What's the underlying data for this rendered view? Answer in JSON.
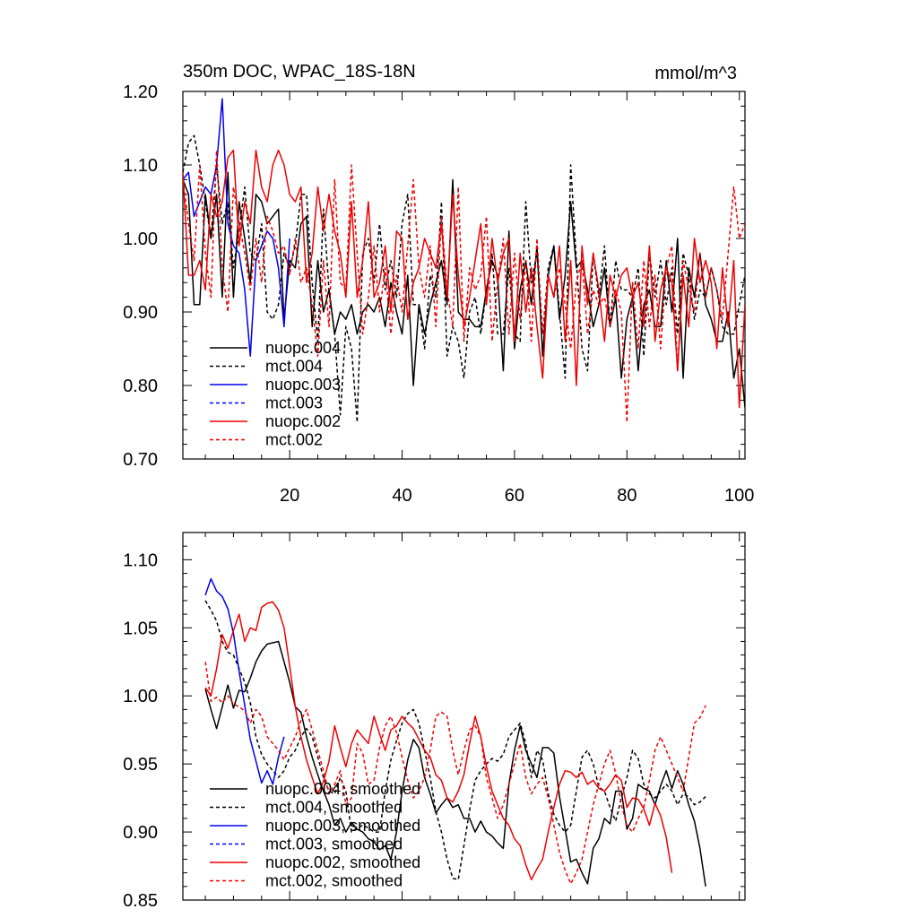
{
  "chart_data": [
    {
      "type": "line",
      "title": "350m DOC, WPAC_18S-18N",
      "units_label": "mmol/m^3",
      "xlim": [
        1,
        101
      ],
      "ylim": [
        0.7,
        1.2
      ],
      "x_ticks": [
        20,
        40,
        60,
        80,
        100
      ],
      "y_ticks": [
        "0.70",
        "0.80",
        "0.90",
        "1.00",
        "1.10",
        "1.20"
      ],
      "legend": "bottom-left",
      "series": [
        {
          "name": "nuopc.004",
          "color": "#000000",
          "dash": "solid",
          "x_start": 1,
          "values": [
            1.08,
            1.06,
            0.91,
            0.91,
            1.06,
            1.0,
            1.06,
            0.92,
            1.09,
            0.92,
            1.05,
            1.0,
            0.94,
            1.06,
            1.05,
            1.02,
            1.03,
            1.04,
            0.89,
            0.97,
            0.96,
            1.02,
            1.03,
            0.88,
            0.97,
            0.9,
            0.93,
            0.87,
            0.9,
            0.89,
            0.91,
            0.87,
            0.9,
            0.91,
            0.9,
            0.92,
            0.88,
            0.94,
            0.9,
            0.87,
            0.95,
            0.8,
            0.91,
            0.87,
            0.91,
            0.94,
            0.97,
            0.91,
            1.08,
            0.9,
            0.89,
            0.89,
            0.88,
            0.88,
            0.93,
            0.97,
            0.95,
            0.82,
            1.01,
            0.85,
            0.93,
            0.97,
            0.91,
            0.99,
            0.84,
            0.95,
            0.99,
            0.89,
            0.95,
            1.05,
            0.96,
            0.97,
            0.93,
            0.88,
            0.91,
            0.96,
            0.88,
            0.92,
            0.81,
            0.89,
            0.92,
            0.82,
            0.91,
            0.93,
            0.88,
            0.88,
            0.97,
            0.9,
            1.0,
            0.81,
            0.96,
            0.92,
            0.98,
            0.91,
            0.89,
            0.86,
            0.86,
            0.9,
            0.81,
            0.85,
            0.77
          ]
        },
        {
          "name": "mct.004",
          "color": "#000000",
          "dash": "dashed",
          "x_start": 1,
          "values": [
            1.09,
            1.13,
            1.14,
            1.1,
            1.05,
            1.0,
            1.1,
            1.02,
            1.05,
            0.96,
            1.01,
            1.07,
            0.98,
            0.97,
            1.02,
            0.9,
            0.89,
            0.91,
            0.98,
            0.96,
            0.99,
            1.06,
            1.06,
            0.94,
            0.86,
            1.04,
            0.93,
            0.87,
            0.76,
            0.88,
            0.85,
            0.75,
            0.98,
            1.0,
            0.94,
            1.02,
            0.93,
            0.97,
            0.92,
            1.02,
            1.06,
            0.91,
            0.91,
            0.85,
            0.95,
            0.92,
            1.05,
            0.84,
            0.88,
            0.86,
            0.81,
            0.9,
            0.92,
            0.87,
            0.93,
            0.98,
            0.87,
            0.87,
            0.96,
            0.87,
            0.86,
            1.05,
            0.94,
            0.98,
            0.87,
            0.96,
            0.99,
            0.9,
            0.81,
            1.1,
            0.97,
            0.85,
            0.82,
            0.98,
            0.92,
            0.99,
            0.88,
            0.97,
            0.93,
            0.93,
            0.92,
            0.96,
            0.84,
            0.98,
            0.92,
            0.97,
            0.91,
            0.96,
            0.87,
            0.98,
            0.95,
            0.89,
            0.93,
            0.92,
            0.96,
            0.93,
            0.88,
            0.87,
            0.87,
            0.91,
            0.95
          ]
        },
        {
          "name": "nuopc.003",
          "color": "#0000ee",
          "dash": "solid",
          "x_start": 1,
          "values": [
            1.08,
            1.09,
            1.03,
            1.05,
            1.07,
            1.06,
            1.1,
            1.19,
            1.02,
            0.99,
            0.98,
            0.93,
            0.84,
            0.97,
            0.99,
            1.01,
            1.0,
            0.96,
            0.88,
            1.0
          ]
        },
        {
          "name": "mct.003",
          "color": "#0000ee",
          "dash": "dashed",
          "x_start": 1,
          "values": []
        },
        {
          "name": "nuopc.002",
          "color": "#ee0000",
          "dash": "solid",
          "x_start": 1,
          "values": [
            1.09,
            0.95,
            0.95,
            0.97,
            0.93,
            1.06,
            1.03,
            1.05,
            1.11,
            1.12,
            0.99,
            1.05,
            1.02,
            1.12,
            1.07,
            1.05,
            1.1,
            1.12,
            1.1,
            1.06,
            1.05,
            1.07,
            0.94,
            0.98,
            1.07,
            1.01,
            1.06,
            1.01,
            0.98,
            0.92,
            1.05,
            0.92,
            0.97,
            1.05,
            0.92,
            0.94,
            0.99,
            0.9,
            1.01,
            1.0,
            0.89,
            0.94,
            0.96,
            1.0,
            0.98,
            0.96,
            1.02,
            0.92,
            1.06,
            0.95,
            0.88,
            0.92,
            0.97,
            1.02,
            0.91,
            1.0,
            0.94,
            0.98,
            1.0,
            0.86,
            0.98,
            0.9,
            0.96,
            0.88,
            0.81,
            0.95,
            0.92,
            0.99,
            0.86,
            0.97,
            0.8,
            0.99,
            0.91,
            0.98,
            0.93,
            0.86,
            0.95,
            0.92,
            0.95,
            0.96,
            0.92,
            0.94,
            0.88,
            0.99,
            0.86,
            0.93,
            0.96,
            0.94,
            0.82,
            0.95,
            0.88,
            1.0,
            0.94,
            0.97,
            0.94,
            0.85,
            0.96,
            0.88,
            0.97,
            0.77,
            0.91
          ]
        },
        {
          "name": "mct.002",
          "color": "#ee0000",
          "dash": "dashed",
          "x_start": 1,
          "values": [
            1.08,
            1.02,
            0.97,
            1.1,
            0.98,
            0.92,
            1.12,
            0.96,
            0.9,
            1.07,
            1.02,
            0.98,
            0.93,
            1.0,
            0.94,
            1.03,
            1.01,
            0.98,
            0.99,
            0.95,
            1.0,
            0.94,
            0.96,
            0.91,
            0.84,
            0.97,
            0.88,
            1.08,
            0.94,
            0.93,
            1.1,
            0.98,
            0.87,
            0.92,
            0.99,
            0.9,
            0.96,
            0.87,
            0.95,
            0.9,
            0.99,
            1.08,
            0.96,
            0.92,
            0.99,
            0.88,
            1.03,
            0.93,
            0.88,
            1.07,
            0.86,
            0.96,
            0.93,
            0.95,
            1.03,
            0.86,
            0.94,
            1.0,
            0.87,
            0.98,
            0.89,
            0.97,
            0.86,
            1.0,
            0.87,
            0.95,
            0.92,
            0.96,
            0.91,
            0.85,
            0.94,
            0.97,
            0.87,
            0.93,
            0.91,
            0.92,
            0.88,
            0.93,
            0.9,
            0.75,
            0.94,
            0.85,
            0.97,
            0.88,
            0.95,
            0.85,
            0.96,
            0.99,
            0.82,
            0.97,
            0.93,
            0.9,
            0.98,
            0.92,
            0.96,
            0.93,
            0.89,
            0.98,
            1.07,
            1.0,
            1.02
          ]
        }
      ]
    },
    {
      "type": "line",
      "title": "",
      "xlim": [
        1,
        101
      ],
      "ylim": [
        0.85,
        1.12
      ],
      "y_ticks": [
        "0.85",
        "0.90",
        "0.95",
        "1.00",
        "1.05",
        "1.10"
      ],
      "legend": "bottom-left",
      "series": [
        {
          "name": "nuopc.004, smoothed",
          "color": "#000000",
          "dash": "solid",
          "x_start": 5,
          "values": [
            1.005,
            0.99,
            0.976,
            0.992,
            1.008,
            0.991,
            1.004,
            1.003,
            1.013,
            1.025,
            1.033,
            1.038,
            1.039,
            1.04,
            1.025,
            1.01,
            0.992,
            0.988,
            0.97,
            0.955,
            0.942,
            0.93,
            0.92,
            0.905,
            0.91,
            0.9,
            0.907,
            0.902,
            0.9,
            0.895,
            0.893,
            0.887,
            0.89,
            0.88,
            0.9,
            0.93,
            0.953,
            0.968,
            0.962,
            0.94,
            0.928,
            0.914,
            0.92,
            0.925,
            0.918,
            0.92,
            0.91,
            0.91,
            0.9,
            0.908,
            0.9,
            0.897,
            0.892,
            0.888,
            0.935,
            0.96,
            0.978,
            0.96,
            0.95,
            0.94,
            0.962,
            0.962,
            0.958,
            0.926,
            0.902,
            0.878,
            0.88,
            0.87,
            0.862,
            0.888,
            0.895,
            0.91,
            0.906,
            0.93,
            0.93,
            0.902,
            0.91,
            0.935,
            0.932,
            0.93,
            0.92,
            0.934,
            0.945,
            0.932,
            0.945,
            0.935,
            0.92,
            0.908,
            0.888,
            0.86
          ]
        },
        {
          "name": "mct.004, smoothed",
          "color": "#000000",
          "dash": "dashed",
          "x_start": 5,
          "values": [
            1.07,
            1.063,
            1.055,
            1.04,
            1.032,
            1.03,
            1.02,
            1.01,
            0.995,
            0.97,
            0.957,
            0.95,
            0.945,
            0.94,
            0.945,
            0.955,
            0.96,
            0.97,
            0.976,
            0.97,
            0.955,
            0.94,
            0.93,
            0.928,
            0.94,
            0.93,
            0.9,
            0.903,
            0.905,
            0.903,
            0.9,
            0.9,
            0.93,
            0.953,
            0.967,
            0.98,
            0.987,
            0.99,
            0.98,
            0.96,
            0.94,
            0.915,
            0.9,
            0.88,
            0.866,
            0.865,
            0.89,
            0.916,
            0.938,
            0.945,
            0.95,
            0.954,
            0.952,
            0.957,
            0.97,
            0.975,
            0.98,
            0.965,
            0.94,
            0.96,
            0.953,
            0.928,
            0.913,
            0.905,
            0.9,
            0.905,
            0.93,
            0.955,
            0.96,
            0.95,
            0.933,
            0.93,
            0.918,
            0.908,
            0.925,
            0.94,
            0.96,
            0.954,
            0.935,
            0.928,
            0.925,
            0.93,
            0.935,
            0.93,
            0.92,
            0.928,
            0.926,
            0.92,
            0.922,
            0.926
          ]
        },
        {
          "name": "nuopc.003, smoothed",
          "color": "#0000ee",
          "dash": "solid",
          "x_start": 5,
          "values": [
            1.074,
            1.086,
            1.077,
            1.073,
            1.064,
            1.046,
            1.018,
            0.993,
            0.968,
            0.952,
            0.936,
            0.945,
            0.935,
            0.955,
            0.97
          ]
        },
        {
          "name": "mct.003, smoothed",
          "color": "#0000ee",
          "dash": "dashed",
          "x_start": 5,
          "values": []
        },
        {
          "name": "nuopc.002, smoothed",
          "color": "#ee0000",
          "dash": "solid",
          "x_start": 5,
          "values": [
            1.006,
            1.0,
            1.02,
            1.045,
            1.035,
            1.048,
            1.06,
            1.04,
            1.05,
            1.048,
            1.065,
            1.068,
            1.069,
            1.063,
            1.05,
            1.022,
            0.992,
            0.97,
            0.953,
            0.94,
            0.928,
            0.937,
            0.952,
            0.978,
            0.962,
            0.948,
            0.965,
            0.975,
            0.97,
            0.965,
            0.985,
            0.972,
            0.96,
            0.975,
            0.978,
            0.985,
            0.98,
            0.976,
            0.968,
            0.96,
            0.955,
            0.942,
            0.938,
            0.925,
            0.922,
            0.93,
            0.942,
            0.965,
            0.985,
            0.97,
            0.948,
            0.93,
            0.92,
            0.91,
            0.905,
            0.895,
            0.89,
            0.876,
            0.865,
            0.873,
            0.88,
            0.9,
            0.918,
            0.935,
            0.945,
            0.944,
            0.94,
            0.944,
            0.935,
            0.938,
            0.932,
            0.93,
            0.935,
            0.942,
            0.938,
            0.918,
            0.925,
            0.924,
            0.917,
            0.905,
            0.921,
            0.912,
            0.896,
            0.87
          ]
        },
        {
          "name": "mct.002, smoothed",
          "color": "#ee0000",
          "dash": "dashed",
          "x_start": 5,
          "values": [
            1.025,
            0.996,
            0.999,
            0.995,
            1.0,
            0.994,
            0.992,
            0.989,
            0.98,
            0.99,
            0.985,
            0.97,
            0.965,
            0.96,
            0.953,
            0.962,
            0.97,
            0.982,
            0.99,
            0.975,
            0.96,
            0.945,
            0.928,
            0.935,
            0.945,
            0.92,
            0.925,
            0.965,
            0.958,
            0.935,
            0.938,
            0.962,
            0.978,
            0.985,
            0.973,
            0.955,
            0.938,
            0.925,
            0.93,
            0.94,
            0.96,
            0.985,
            0.988,
            0.985,
            0.96,
            0.942,
            0.96,
            0.975,
            0.978,
            0.97,
            0.94,
            0.925,
            0.91,
            0.92,
            0.935,
            0.95,
            0.965,
            0.94,
            0.928,
            0.935,
            0.94,
            0.925,
            0.905,
            0.885,
            0.872,
            0.862,
            0.87,
            0.88,
            0.9,
            0.92,
            0.935,
            0.95,
            0.96,
            0.943,
            0.92,
            0.905,
            0.9,
            0.91,
            0.918,
            0.938,
            0.96,
            0.97,
            0.96,
            0.95,
            0.94,
            0.93,
            0.955,
            0.98,
            0.984,
            0.993
          ]
        }
      ]
    }
  ]
}
